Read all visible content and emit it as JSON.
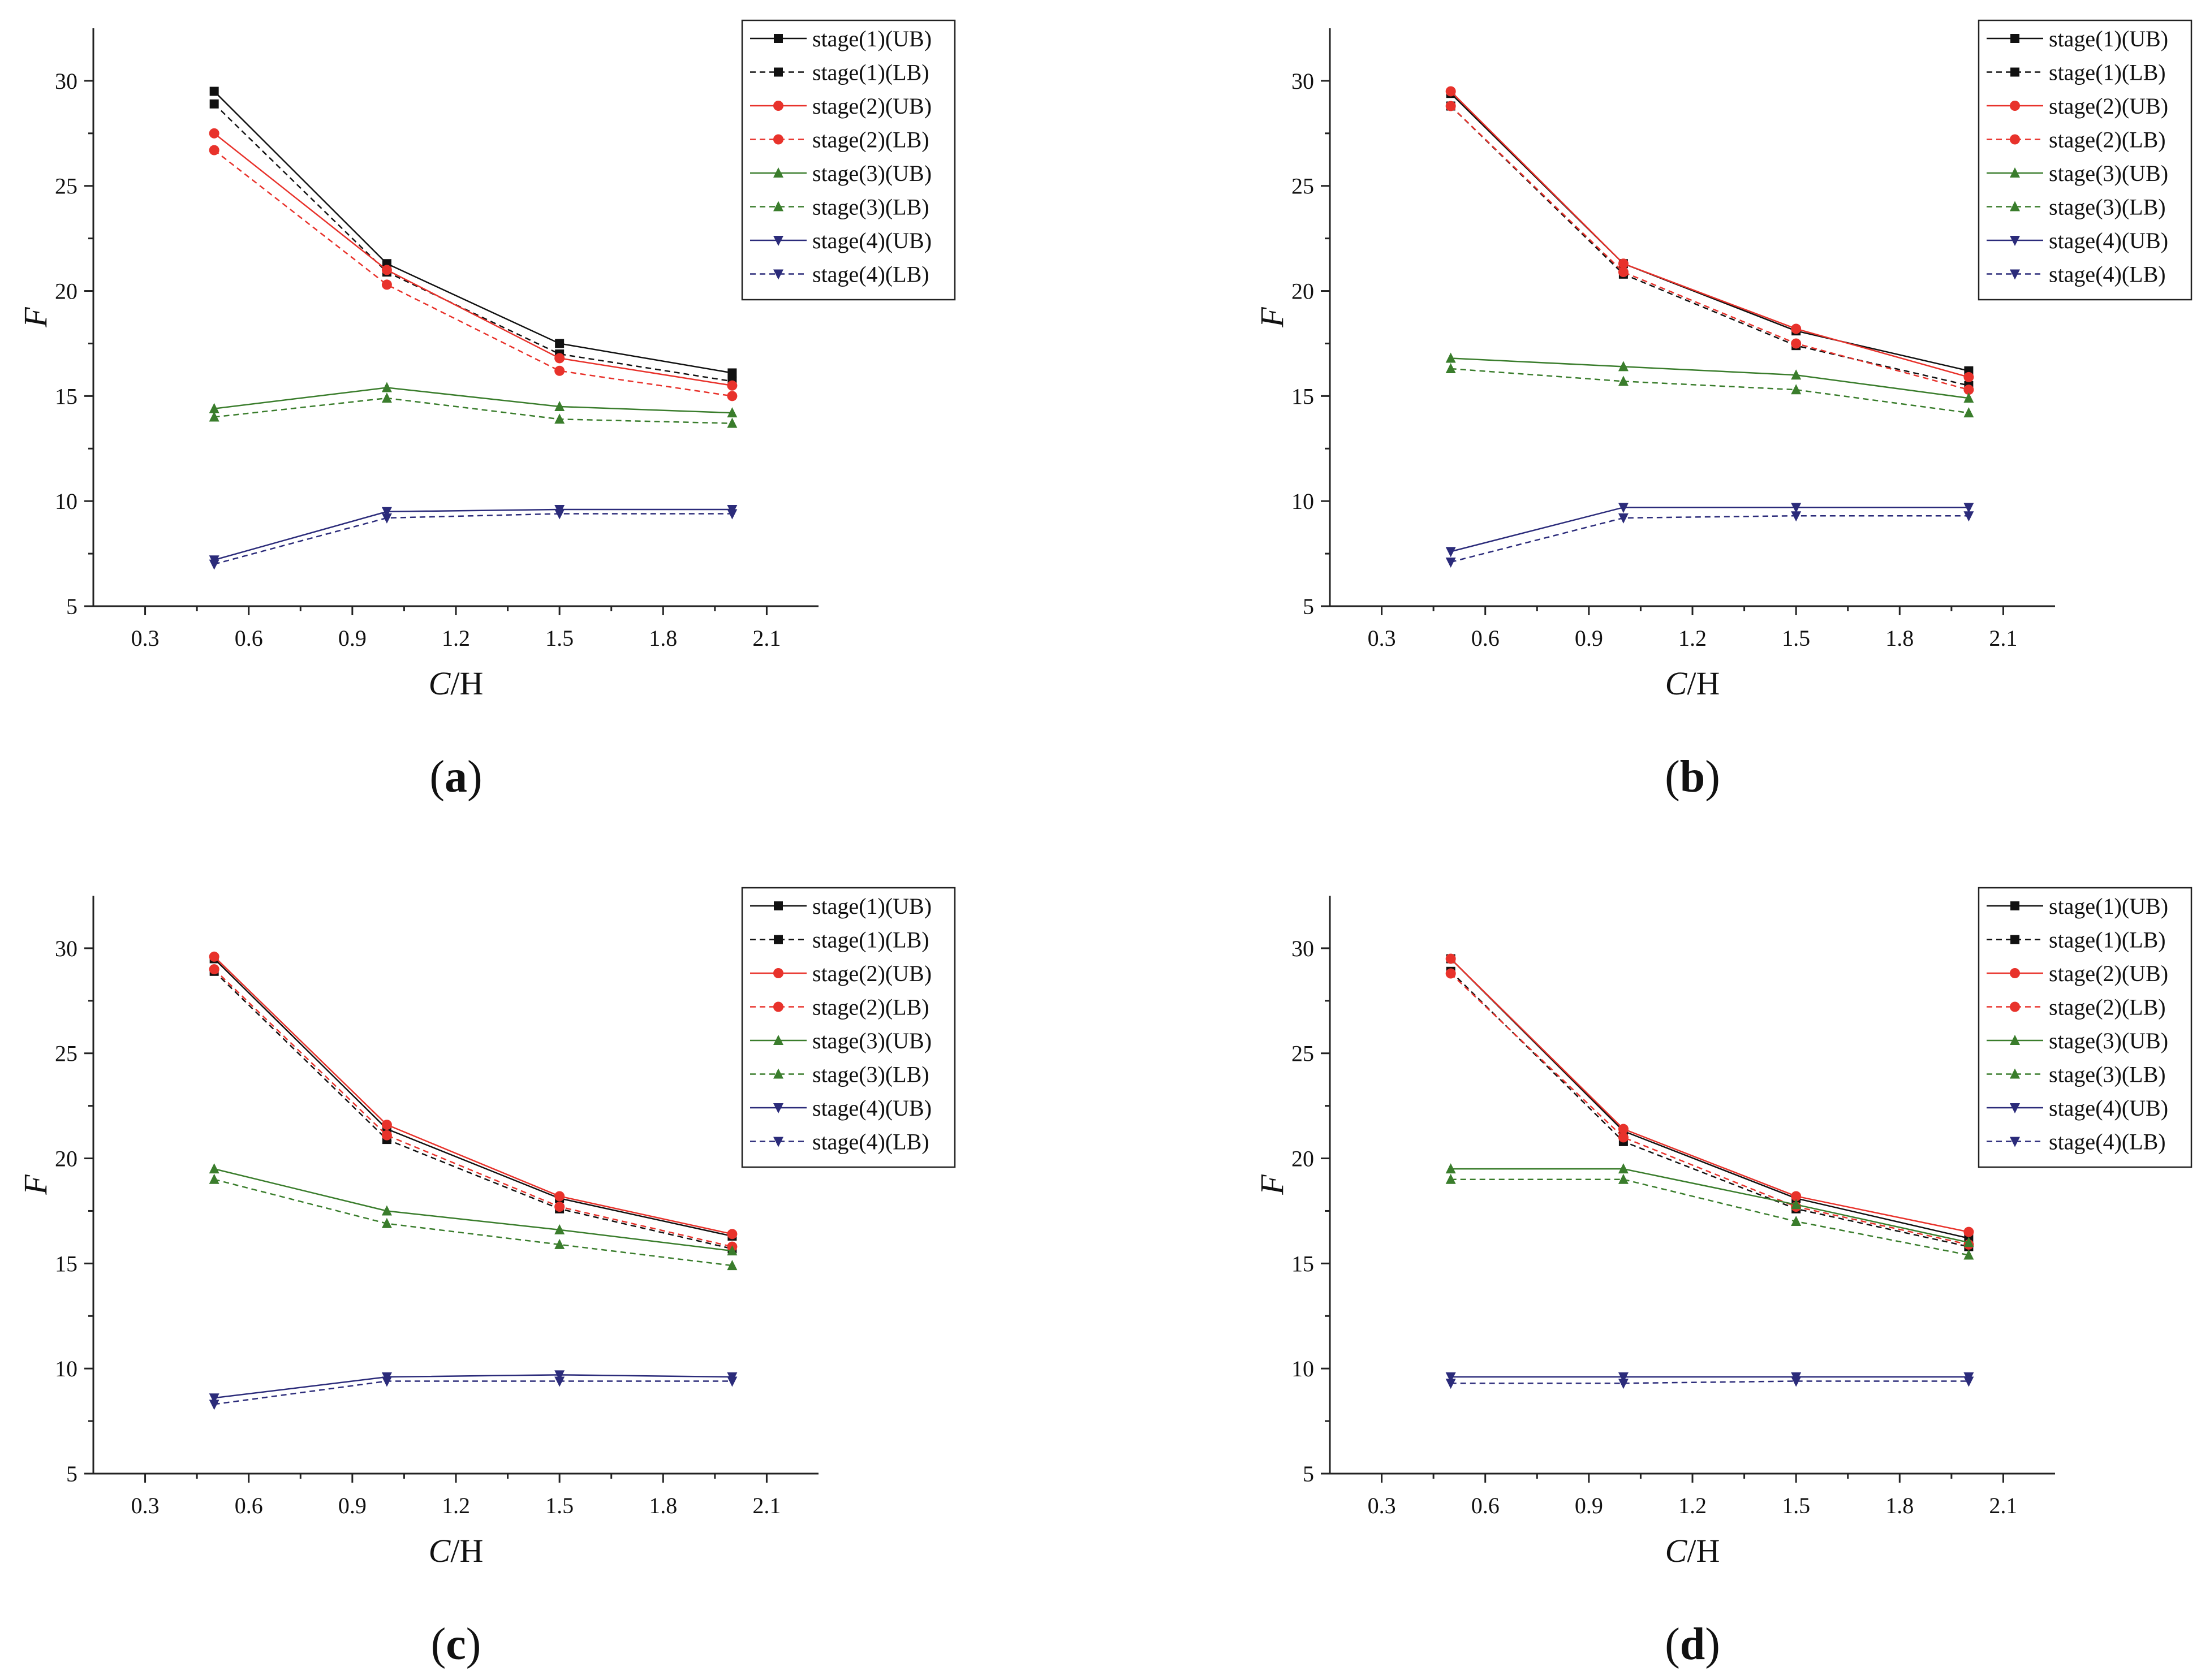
{
  "figure": {
    "panels": [
      {
        "caption_open": "(",
        "caption_letter": "a",
        "caption_close": ")",
        "xlabel_italic": "C",
        "xlabel_rest": "/H",
        "ylabel": "F"
      },
      {
        "caption_open": "(",
        "caption_letter": "b",
        "caption_close": ")",
        "xlabel_italic": "C",
        "xlabel_rest": "/H",
        "ylabel": "F"
      },
      {
        "caption_open": "(",
        "caption_letter": "c",
        "caption_close": ")",
        "xlabel_italic": "C",
        "xlabel_rest": "/H",
        "ylabel": "F"
      },
      {
        "caption_open": "(",
        "caption_letter": "d",
        "caption_close": ")",
        "xlabel_italic": "C",
        "xlabel_rest": "/H",
        "ylabel": "F"
      }
    ]
  },
  "style": {
    "series_colors": {
      "stage1": "#111111",
      "stage2": "#e8322b",
      "stage3": "#3a7d2c",
      "stage4": "#2b2b7a"
    },
    "markers": {
      "stage1": "square",
      "stage2": "circle",
      "stage3": "triangle-up",
      "stage4": "triangle-down"
    }
  },
  "chart_data": [
    {
      "type": "line",
      "xlabel": "C/H",
      "ylabel": "F",
      "xlim": [
        0.15,
        2.25
      ],
      "ylim": [
        5,
        32.5
      ],
      "xticks": [
        "0.3",
        "0.6",
        "0.9",
        "1.2",
        "1.5",
        "1.8",
        "2.1"
      ],
      "yticks": [
        "5",
        "10",
        "15",
        "20",
        "25",
        "30"
      ],
      "legend_position": "top-right",
      "x": [
        0.5,
        1.0,
        1.5,
        2.0
      ],
      "series": [
        {
          "name": "stage(1)(UB)",
          "stage": "stage1",
          "dashed": false,
          "values": [
            29.5,
            21.3,
            17.5,
            16.1
          ]
        },
        {
          "name": "stage(1)(LB)",
          "stage": "stage1",
          "dashed": true,
          "values": [
            28.9,
            20.9,
            17.0,
            15.7
          ]
        },
        {
          "name": "stage(2)(UB)",
          "stage": "stage2",
          "dashed": false,
          "values": [
            27.5,
            21.0,
            16.8,
            15.5
          ]
        },
        {
          "name": "stage(2)(LB)",
          "stage": "stage2",
          "dashed": true,
          "values": [
            26.7,
            20.3,
            16.2,
            15.0
          ]
        },
        {
          "name": "stage(3)(UB)",
          "stage": "stage3",
          "dashed": false,
          "values": [
            14.4,
            15.4,
            14.5,
            14.2
          ]
        },
        {
          "name": "stage(3)(LB)",
          "stage": "stage3",
          "dashed": true,
          "values": [
            14.0,
            14.9,
            13.9,
            13.7
          ]
        },
        {
          "name": "stage(4)(UB)",
          "stage": "stage4",
          "dashed": false,
          "values": [
            7.2,
            9.5,
            9.6,
            9.6
          ]
        },
        {
          "name": "stage(4)(LB)",
          "stage": "stage4",
          "dashed": true,
          "values": [
            7.0,
            9.2,
            9.4,
            9.4
          ]
        }
      ]
    },
    {
      "type": "line",
      "xlabel": "C/H",
      "ylabel": "F",
      "xlim": [
        0.15,
        2.25
      ],
      "ylim": [
        5,
        32.5
      ],
      "xticks": [
        "0.3",
        "0.6",
        "0.9",
        "1.2",
        "1.5",
        "1.8",
        "2.1"
      ],
      "yticks": [
        "5",
        "10",
        "15",
        "20",
        "25",
        "30"
      ],
      "legend_position": "top-right",
      "x": [
        0.5,
        1.0,
        1.5,
        2.0
      ],
      "series": [
        {
          "name": "stage(1)(UB)",
          "stage": "stage1",
          "dashed": false,
          "values": [
            29.4,
            21.3,
            18.1,
            16.2
          ]
        },
        {
          "name": "stage(1)(LB)",
          "stage": "stage1",
          "dashed": true,
          "values": [
            28.8,
            20.8,
            17.4,
            15.5
          ]
        },
        {
          "name": "stage(2)(UB)",
          "stage": "stage2",
          "dashed": false,
          "values": [
            29.5,
            21.3,
            18.2,
            15.9
          ]
        },
        {
          "name": "stage(2)(LB)",
          "stage": "stage2",
          "dashed": true,
          "values": [
            28.8,
            20.9,
            17.5,
            15.3
          ]
        },
        {
          "name": "stage(3)(UB)",
          "stage": "stage3",
          "dashed": false,
          "values": [
            16.8,
            16.4,
            16.0,
            14.9
          ]
        },
        {
          "name": "stage(3)(LB)",
          "stage": "stage3",
          "dashed": true,
          "values": [
            16.3,
            15.7,
            15.3,
            14.2
          ]
        },
        {
          "name": "stage(4)(UB)",
          "stage": "stage4",
          "dashed": false,
          "values": [
            7.6,
            9.7,
            9.7,
            9.7
          ]
        },
        {
          "name": "stage(4)(LB)",
          "stage": "stage4",
          "dashed": true,
          "values": [
            7.1,
            9.2,
            9.3,
            9.3
          ]
        }
      ]
    },
    {
      "type": "line",
      "xlabel": "C/H",
      "ylabel": "F",
      "xlim": [
        0.15,
        2.25
      ],
      "ylim": [
        5,
        32.5
      ],
      "xticks": [
        "0.3",
        "0.6",
        "0.9",
        "1.2",
        "1.5",
        "1.8",
        "2.1"
      ],
      "yticks": [
        "5",
        "10",
        "15",
        "20",
        "25",
        "30"
      ],
      "legend_position": "top-right",
      "x": [
        0.5,
        1.0,
        1.5,
        2.0
      ],
      "series": [
        {
          "name": "stage(1)(UB)",
          "stage": "stage1",
          "dashed": false,
          "values": [
            29.5,
            21.4,
            18.1,
            16.3
          ]
        },
        {
          "name": "stage(1)(LB)",
          "stage": "stage1",
          "dashed": true,
          "values": [
            28.9,
            20.9,
            17.6,
            15.7
          ]
        },
        {
          "name": "stage(2)(UB)",
          "stage": "stage2",
          "dashed": false,
          "values": [
            29.6,
            21.6,
            18.2,
            16.4
          ]
        },
        {
          "name": "stage(2)(LB)",
          "stage": "stage2",
          "dashed": true,
          "values": [
            29.0,
            21.1,
            17.7,
            15.8
          ]
        },
        {
          "name": "stage(3)(UB)",
          "stage": "stage3",
          "dashed": false,
          "values": [
            19.5,
            17.5,
            16.6,
            15.6
          ]
        },
        {
          "name": "stage(3)(LB)",
          "stage": "stage3",
          "dashed": true,
          "values": [
            19.0,
            16.9,
            15.9,
            14.9
          ]
        },
        {
          "name": "stage(4)(UB)",
          "stage": "stage4",
          "dashed": false,
          "values": [
            8.6,
            9.6,
            9.7,
            9.6
          ]
        },
        {
          "name": "stage(4)(LB)",
          "stage": "stage4",
          "dashed": true,
          "values": [
            8.3,
            9.4,
            9.4,
            9.4
          ]
        }
      ]
    },
    {
      "type": "line",
      "xlabel": "C/H",
      "ylabel": "F",
      "xlim": [
        0.15,
        2.25
      ],
      "ylim": [
        5,
        32.5
      ],
      "xticks": [
        "0.3",
        "0.6",
        "0.9",
        "1.2",
        "1.5",
        "1.8",
        "2.1"
      ],
      "yticks": [
        "5",
        "10",
        "15",
        "20",
        "25",
        "30"
      ],
      "legend_position": "top-right",
      "x": [
        0.5,
        1.0,
        1.5,
        2.0
      ],
      "series": [
        {
          "name": "stage(1)(UB)",
          "stage": "stage1",
          "dashed": false,
          "values": [
            29.5,
            21.3,
            18.1,
            16.2
          ]
        },
        {
          "name": "stage(1)(LB)",
          "stage": "stage1",
          "dashed": true,
          "values": [
            28.9,
            20.8,
            17.6,
            15.8
          ]
        },
        {
          "name": "stage(2)(UB)",
          "stage": "stage2",
          "dashed": false,
          "values": [
            29.5,
            21.4,
            18.2,
            16.5
          ]
        },
        {
          "name": "stage(2)(LB)",
          "stage": "stage2",
          "dashed": true,
          "values": [
            28.8,
            21.0,
            17.7,
            15.9
          ]
        },
        {
          "name": "stage(3)(UB)",
          "stage": "stage3",
          "dashed": false,
          "values": [
            19.5,
            19.5,
            17.8,
            16.0
          ]
        },
        {
          "name": "stage(3)(LB)",
          "stage": "stage3",
          "dashed": true,
          "values": [
            19.0,
            19.0,
            17.0,
            15.4
          ]
        },
        {
          "name": "stage(4)(UB)",
          "stage": "stage4",
          "dashed": false,
          "values": [
            9.6,
            9.6,
            9.6,
            9.6
          ]
        },
        {
          "name": "stage(4)(LB)",
          "stage": "stage4",
          "dashed": true,
          "values": [
            9.3,
            9.3,
            9.4,
            9.4
          ]
        }
      ]
    }
  ]
}
